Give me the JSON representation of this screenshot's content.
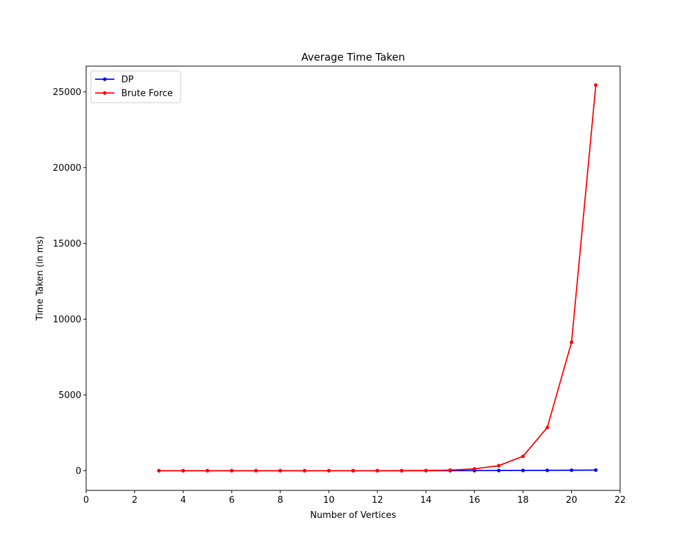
{
  "chart_data": {
    "type": "line",
    "title": "Average Time Taken",
    "xlabel": "Number of Vertices",
    "ylabel": "Time Taken (in ms)",
    "xlim": [
      0,
      22
    ],
    "ylim": [
      -1300,
      26700
    ],
    "xticks": [
      0,
      2,
      4,
      6,
      8,
      10,
      12,
      14,
      16,
      18,
      20,
      22
    ],
    "yticks": [
      0,
      5000,
      10000,
      15000,
      20000,
      25000
    ],
    "grid": false,
    "legend_position": "upper-left",
    "x": [
      3,
      4,
      5,
      6,
      7,
      8,
      9,
      10,
      11,
      12,
      13,
      14,
      15,
      16,
      17,
      18,
      19,
      20,
      21
    ],
    "series": [
      {
        "name": "DP",
        "color": "#0000ff",
        "marker": "dot",
        "values": [
          0,
          0,
          0,
          0,
          0,
          0,
          0,
          0,
          1,
          1,
          2,
          3,
          5,
          8,
          12,
          18,
          25,
          33,
          40
        ]
      },
      {
        "name": "Brute Force",
        "color": "#ff0000",
        "marker": "dot",
        "values": [
          0,
          0,
          0,
          0,
          0,
          0,
          0,
          1,
          1,
          2,
          5,
          12,
          40,
          120,
          330,
          950,
          2850,
          8480,
          25450
        ]
      }
    ]
  }
}
